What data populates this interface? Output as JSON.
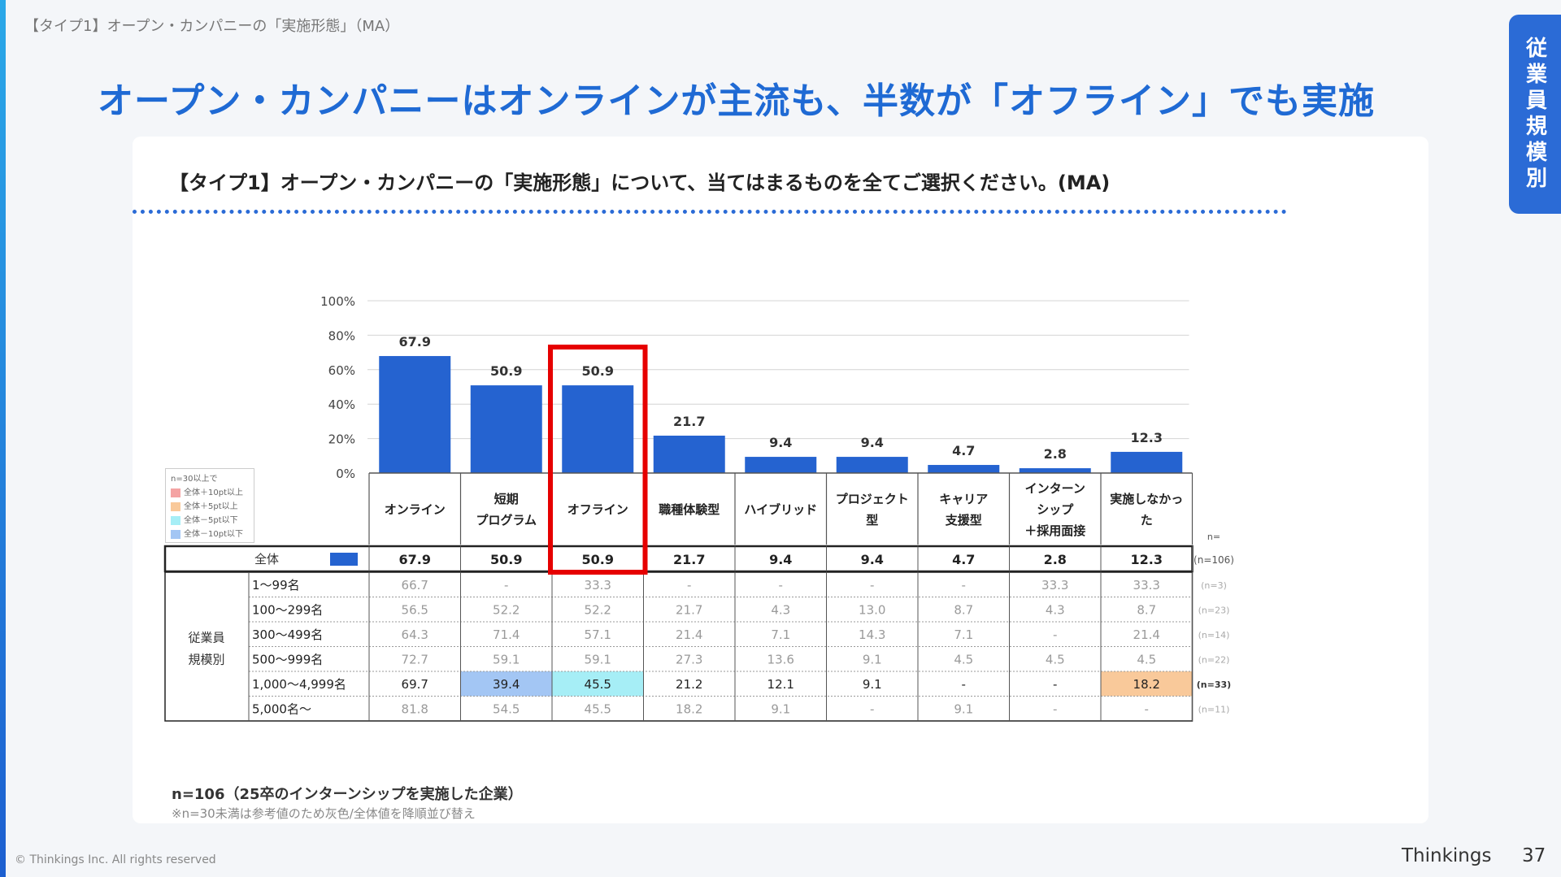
{
  "header": {
    "breadcrumb": "【タイプ1】オープン・カンパニーの「実施形態」（MA）",
    "title": "オープン・カンパニーはオンラインが主流も、半数が「オフライン」でも実施",
    "side_tab": "従業員規模別"
  },
  "question": "【タイプ1】オープン・カンパニーの「実施形態」について、当てはまるものを全てご選択ください。(MA)",
  "legend": {
    "title": "n=30以上で",
    "items": [
      {
        "label": "全体＋10pt以上",
        "color": "#f4a3a3"
      },
      {
        "label": "全体＋5pt以上",
        "color": "#f9c99a"
      },
      {
        "label": "全体－5pt以下",
        "color": "#a6eef6"
      },
      {
        "label": "全体－10pt以下",
        "color": "#a3c6f4"
      }
    ]
  },
  "chart_data": {
    "type": "bar",
    "categories": [
      "オンライン",
      "短期\nプログラム",
      "オフライン",
      "職種体験型",
      "ハイブリッド",
      "プロジェクト\n型",
      "キャリア\n支援型",
      "インターン\nシップ\n＋採用面接",
      "実施しなかっ\nた"
    ],
    "values": [
      67.9,
      50.9,
      50.9,
      21.7,
      9.4,
      9.4,
      4.7,
      2.8,
      12.3
    ],
    "ylim": [
      0,
      100
    ],
    "yticks": [
      "0%",
      "20%",
      "40%",
      "60%",
      "80%",
      "100%"
    ],
    "bar_color": "#2563d0",
    "highlight_category": "オフライン",
    "highlight_color": "#e60000",
    "grid": true
  },
  "table": {
    "n_header": "n=",
    "total_row": {
      "label": "全体",
      "values": [
        "67.9",
        "50.9",
        "50.9",
        "21.7",
        "9.4",
        "9.4",
        "4.7",
        "2.8",
        "12.3"
      ],
      "n": "(n=106)"
    },
    "group_label": "従業員\n規模別",
    "rows": [
      {
        "label": "1〜99名",
        "values": [
          "66.7",
          "-",
          "33.3",
          "-",
          "-",
          "-",
          "-",
          "33.3",
          "33.3"
        ],
        "n": "(n=3)",
        "gray": true,
        "hl": [
          "",
          "",
          "",
          "",
          "",
          "",
          "",
          "",
          ""
        ]
      },
      {
        "label": "100〜299名",
        "values": [
          "56.5",
          "52.2",
          "52.2",
          "21.7",
          "4.3",
          "13.0",
          "8.7",
          "4.3",
          "8.7"
        ],
        "n": "(n=23)",
        "gray": true,
        "hl": [
          "",
          "",
          "",
          "",
          "",
          "",
          "",
          "",
          ""
        ]
      },
      {
        "label": "300〜499名",
        "values": [
          "64.3",
          "71.4",
          "57.1",
          "21.4",
          "7.1",
          "14.3",
          "7.1",
          "-",
          "21.4"
        ],
        "n": "(n=14)",
        "gray": true,
        "hl": [
          "",
          "",
          "",
          "",
          "",
          "",
          "",
          "",
          ""
        ]
      },
      {
        "label": "500〜999名",
        "values": [
          "72.7",
          "59.1",
          "59.1",
          "27.3",
          "13.6",
          "9.1",
          "4.5",
          "4.5",
          "4.5"
        ],
        "n": "(n=22)",
        "gray": true,
        "hl": [
          "",
          "",
          "",
          "",
          "",
          "",
          "",
          "",
          ""
        ]
      },
      {
        "label": "1,000〜4,999名",
        "values": [
          "69.7",
          "39.4",
          "45.5",
          "21.2",
          "12.1",
          "9.1",
          "-",
          "-",
          "18.2"
        ],
        "n": "(n=33)",
        "gray": false,
        "hl": [
          "",
          "#a3c6f4",
          "#a6eef6",
          "",
          "",
          "",
          "",
          "",
          "#f9c99a"
        ]
      },
      {
        "label": "5,000名〜",
        "values": [
          "81.8",
          "54.5",
          "45.5",
          "18.2",
          "9.1",
          "-",
          "9.1",
          "-",
          "-"
        ],
        "n": "(n=11)",
        "gray": true,
        "hl": [
          "",
          "",
          "",
          "",
          "",
          "",
          "",
          "",
          ""
        ]
      }
    ]
  },
  "footer": {
    "n_note": "n=106（25卒のインターンシップを実施した企業）",
    "note": "※n=30未満は参考値のため灰色/全体値を降順並び替え",
    "copyright": "© Thinkings Inc. All rights reserved",
    "brand": "Thinkings",
    "page": "37"
  }
}
